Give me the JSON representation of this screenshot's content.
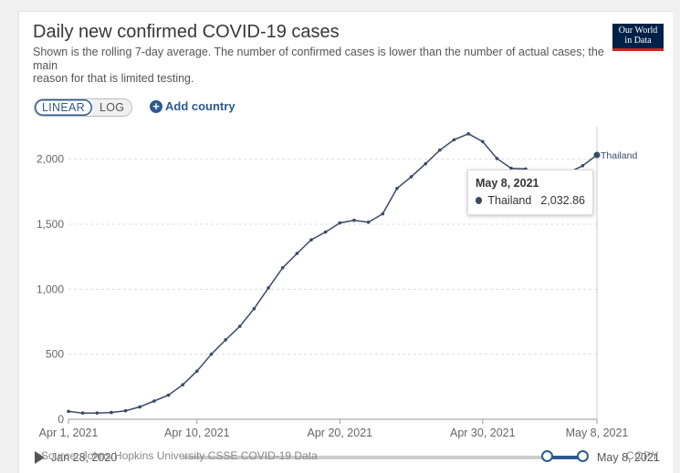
{
  "header": {
    "title": "Daily new confirmed COVID-19 cases",
    "subtitle_line1": "Shown is the rolling 7-day average. The number of confirmed cases is lower than the number of actual cases; the main",
    "subtitle_line2": "reason for that is limited testing.",
    "logo_line1": "Our World",
    "logo_line2": "in Data"
  },
  "controls": {
    "linear_label": "LINEAR",
    "log_label": "LOG",
    "active_scale": "LINEAR",
    "add_country_label": "Add country",
    "add_icon": "plus-circle-icon"
  },
  "tooltip": {
    "date": "May 8, 2021",
    "series": "Thailand",
    "value": "2,032.86"
  },
  "footer": {
    "source": "Source: Johns Hopkins University CSSE COVID-19 Data",
    "copy_label": "COPY"
  },
  "timeline": {
    "start_label": "Jan 28, 2020",
    "end_label": "May 8, 2021",
    "range_start_fraction": 0.91,
    "range_end_fraction": 1.0
  },
  "colors": {
    "line": "#3a4a68",
    "accent": "#2c5a8f",
    "grid": "#dddddd"
  },
  "chart_data": {
    "type": "line",
    "title": "Daily new confirmed COVID-19 cases",
    "x_labels": [
      "Apr 1, 2021",
      "Apr 10, 2021",
      "Apr 20, 2021",
      "Apr 30, 2021",
      "May 8, 2021"
    ],
    "x_tick_days": [
      0,
      9,
      19,
      29,
      37
    ],
    "y_ticks": [
      0,
      500,
      1000,
      1500,
      2000
    ],
    "y_tick_labels": [
      "0",
      "500",
      "1,000",
      "1,500",
      "2,000"
    ],
    "ylim": [
      0,
      2250
    ],
    "grid": true,
    "series": [
      {
        "name": "Thailand",
        "end_label": "Thailand",
        "dates": [
          "2021-04-01",
          "2021-04-02",
          "2021-04-03",
          "2021-04-04",
          "2021-04-05",
          "2021-04-06",
          "2021-04-07",
          "2021-04-08",
          "2021-04-09",
          "2021-04-10",
          "2021-04-11",
          "2021-04-12",
          "2021-04-13",
          "2021-04-14",
          "2021-04-15",
          "2021-04-16",
          "2021-04-17",
          "2021-04-18",
          "2021-04-19",
          "2021-04-20",
          "2021-04-21",
          "2021-04-22",
          "2021-04-23",
          "2021-04-24",
          "2021-04-25",
          "2021-04-26",
          "2021-04-27",
          "2021-04-28",
          "2021-04-29",
          "2021-04-30",
          "2021-05-01",
          "2021-05-02",
          "2021-05-03",
          "2021-05-04",
          "2021-05-05",
          "2021-05-06",
          "2021-05-07",
          "2021-05-08"
        ],
        "values": [
          60,
          48,
          48,
          52,
          65,
          95,
          140,
          185,
          265,
          370,
          500,
          610,
          715,
          850,
          1010,
          1165,
          1275,
          1380,
          1440,
          1510,
          1530,
          1515,
          1580,
          1775,
          1865,
          1965,
          2070,
          2150,
          2195,
          2135,
          2005,
          1930,
          1925,
          1870,
          1875,
          1895,
          1950,
          2032.86
        ]
      }
    ]
  }
}
